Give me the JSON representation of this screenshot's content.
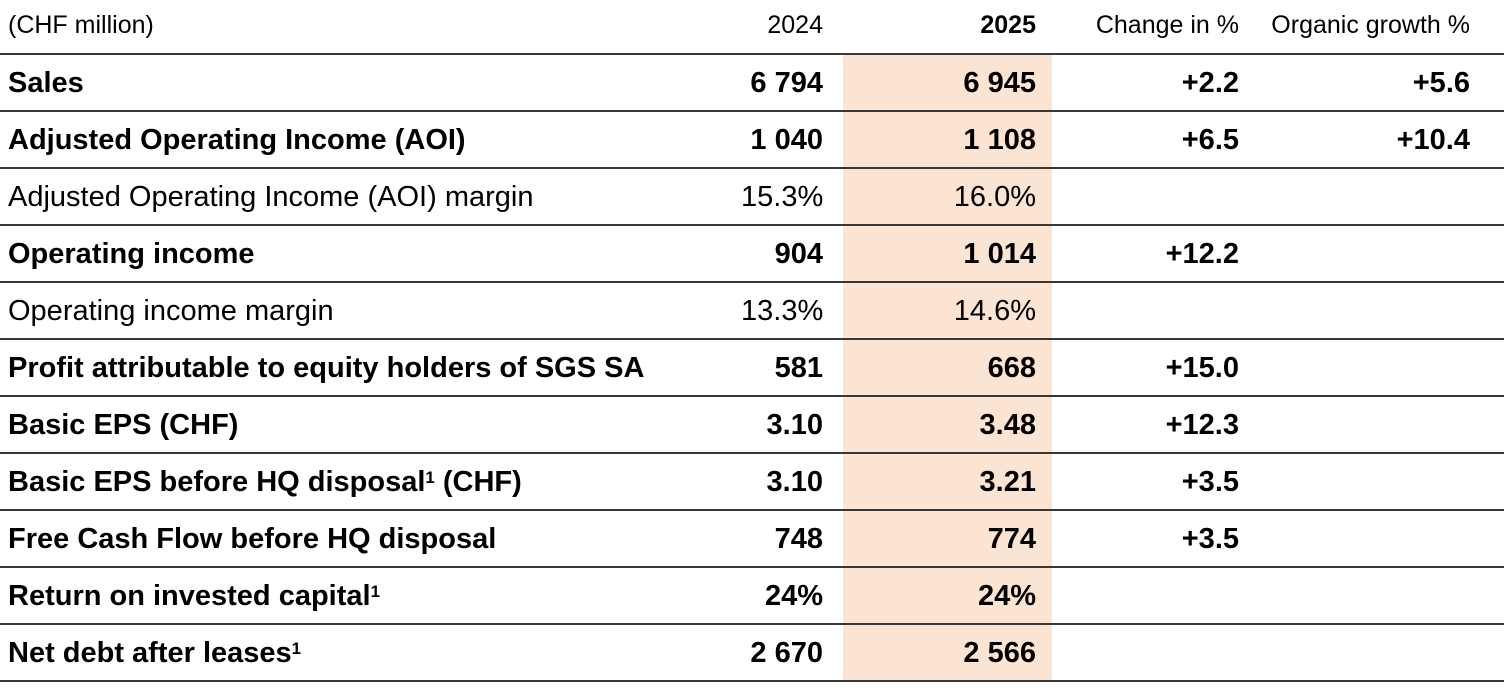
{
  "colors": {
    "highlight": "#FCE4D3",
    "line": "#383838",
    "text": "#000000"
  },
  "table": {
    "unit_label": "(CHF million)",
    "columns": [
      "2024",
      "2025",
      "Change in %",
      "Organic growth %"
    ],
    "rows": [
      {
        "label": "Sales",
        "sup": "",
        "label_suffix": "",
        "bold": true,
        "v2024": "6 794",
        "v2025": "6 945",
        "change": "+2.2",
        "organic": "+5.6"
      },
      {
        "label": "Adjusted Operating Income (AOI)",
        "sup": "",
        "label_suffix": "",
        "bold": true,
        "v2024": "1 040",
        "v2025": "1 108",
        "change": "+6.5",
        "organic": "+10.4"
      },
      {
        "label": "Adjusted Operating Income (AOI) margin",
        "sup": "",
        "label_suffix": "",
        "bold": false,
        "v2024": "15.3%",
        "v2025": "16.0%",
        "change": "",
        "organic": ""
      },
      {
        "label": "Operating income",
        "sup": "",
        "label_suffix": "",
        "bold": true,
        "v2024": "904",
        "v2025": "1 014",
        "change": "+12.2",
        "organic": ""
      },
      {
        "label": "Operating income margin",
        "sup": "",
        "label_suffix": "",
        "bold": false,
        "v2024": "13.3%",
        "v2025": "14.6%",
        "change": "",
        "organic": ""
      },
      {
        "label": "Profit attributable to equity holders of SGS SA",
        "sup": "",
        "label_suffix": "",
        "bold": true,
        "v2024": "581",
        "v2025": "668",
        "change": "+15.0",
        "organic": ""
      },
      {
        "label": "Basic EPS (CHF)",
        "sup": "",
        "label_suffix": "",
        "bold": true,
        "v2024": "3.10",
        "v2025": "3.48",
        "change": "+12.3",
        "organic": ""
      },
      {
        "label": "Basic EPS before HQ disposal",
        "sup": "1",
        "label_suffix": " (CHF)",
        "bold": true,
        "v2024": "3.10",
        "v2025": "3.21",
        "change": "+3.5",
        "organic": ""
      },
      {
        "label": "Free Cash Flow before HQ disposal",
        "sup": "",
        "label_suffix": "",
        "bold": true,
        "v2024": "748",
        "v2025": "774",
        "change": "+3.5",
        "organic": ""
      },
      {
        "label": "Return on invested capital",
        "sup": "1",
        "label_suffix": "",
        "bold": true,
        "v2024": "24%",
        "v2025": "24%",
        "change": "",
        "organic": ""
      },
      {
        "label": "Net debt after leases",
        "sup": "1",
        "label_suffix": "",
        "bold": true,
        "v2024": "2 670",
        "v2025": "2 566",
        "change": "",
        "organic": ""
      }
    ]
  }
}
